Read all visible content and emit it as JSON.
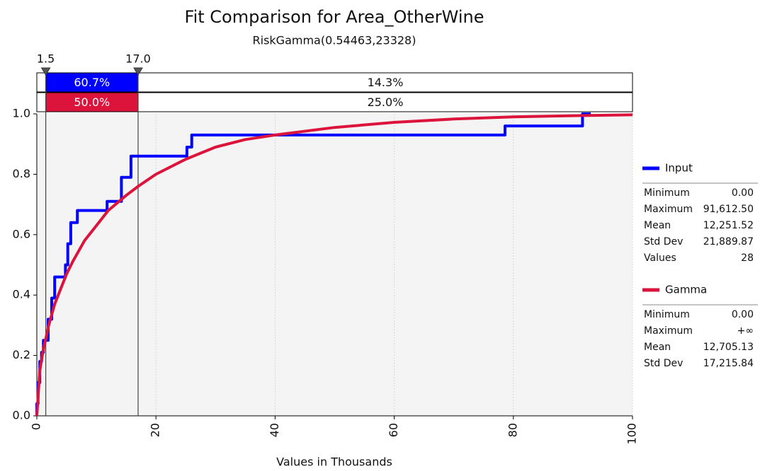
{
  "chart_data": {
    "type": "line",
    "title": "Fit Comparison for Area_OtherWine",
    "subtitle": "RiskGamma(0.54463,23328)",
    "x_label": "Values in Thousands",
    "xlim": [
      0,
      100
    ],
    "ylim": [
      0,
      1
    ],
    "xticks": [
      0,
      20,
      40,
      60,
      80,
      100
    ],
    "yticks": [
      {
        "value": 0,
        "label": "0.0"
      },
      0.2,
      0.4,
      0.6,
      0.8,
      {
        "value": 1,
        "label": "1.0"
      }
    ],
    "grid": true,
    "delimiters": [
      1.5,
      {
        "value": 17,
        "label": "17.0"
      }
    ],
    "series": [
      {
        "name": "Input",
        "color": "#0000ff",
        "x": [
          0,
          0,
          0.2,
          0.2,
          0.5,
          0.5,
          0.8,
          0.8,
          1.1,
          1.1,
          1.9,
          1.9,
          2.5,
          2.5,
          3.0,
          3.0,
          4.8,
          4.8,
          5.2,
          5.2,
          5.7,
          5.7,
          6.8,
          6.8,
          11.8,
          11.8,
          14.2,
          14.2,
          15.8,
          15.8,
          25.2,
          25.2,
          26.0,
          26.0,
          78.6,
          78.6,
          91.6,
          91.6,
          93
        ],
        "values": [
          0,
          0.04,
          0.04,
          0.11,
          0.11,
          0.18,
          0.18,
          0.21,
          0.21,
          0.25,
          0.25,
          0.32,
          0.32,
          0.39,
          0.39,
          0.46,
          0.46,
          0.5,
          0.5,
          0.57,
          0.57,
          0.64,
          0.64,
          0.68,
          0.68,
          0.71,
          0.71,
          0.79,
          0.79,
          0.86,
          0.86,
          0.89,
          0.89,
          0.93,
          0.93,
          0.96,
          0.96,
          1.0,
          1.0
        ],
        "bands": {
          "values": [
            60.7,
            14.3
          ],
          "value_labels": [
            "60.7%",
            "14.3%"
          ]
        },
        "stats": [
          [
            "Minimum",
            "0.00"
          ],
          [
            "Maximum",
            "91,612.50"
          ],
          [
            "Mean",
            "12,251.52"
          ],
          [
            "Std Dev",
            "21,889.87"
          ],
          [
            "Values",
            "28"
          ]
        ]
      },
      {
        "name": "Gamma",
        "color": "#dc143c",
        "x": [
          0,
          0.5,
          1,
          2,
          3,
          4,
          5,
          6,
          8,
          10,
          12,
          15,
          17,
          20,
          25,
          30,
          35,
          40,
          50,
          60,
          70,
          80,
          90,
          100
        ],
        "values": [
          0,
          0.15,
          0.21,
          0.3,
          0.37,
          0.42,
          0.47,
          0.51,
          0.58,
          0.63,
          0.68,
          0.73,
          0.76,
          0.8,
          0.85,
          0.89,
          0.915,
          0.93,
          0.955,
          0.972,
          0.983,
          0.99,
          0.994,
          0.997
        ],
        "bands": {
          "values": [
            50.0,
            25.0
          ],
          "value_labels": [
            "50.0%",
            "25.0%"
          ]
        },
        "stats": [
          [
            "Minimum",
            "0.00"
          ],
          [
            "Maximum",
            "+∞"
          ],
          [
            "Mean",
            "12,705.13"
          ],
          [
            "Std Dev",
            "17,215.84"
          ]
        ]
      }
    ]
  }
}
